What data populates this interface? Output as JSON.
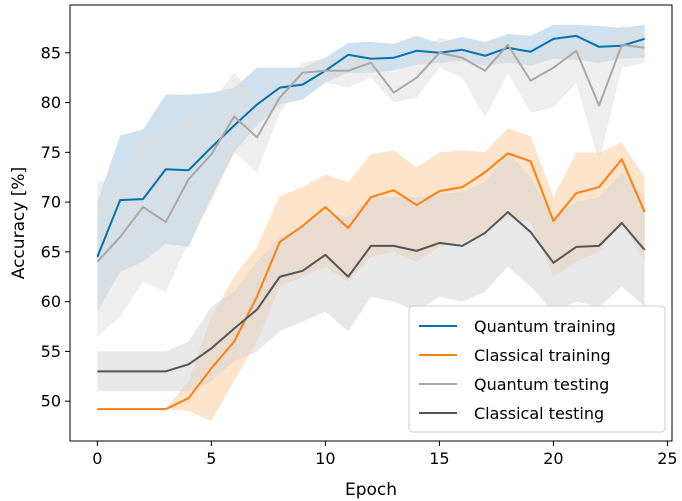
{
  "chart_data": {
    "type": "line",
    "xlabel": "Epoch",
    "ylabel": "Accuracy [%]",
    "xlim": [
      -1.2,
      25.2
    ],
    "ylim": [
      46.0,
      89.8
    ],
    "xticks": [
      0,
      5,
      10,
      15,
      20,
      25
    ],
    "yticks": [
      50,
      55,
      60,
      65,
      70,
      75,
      80,
      85
    ],
    "grid": false,
    "legend_position": "lower right",
    "x": [
      0,
      1,
      2,
      3,
      4,
      5,
      6,
      7,
      8,
      9,
      10,
      11,
      12,
      13,
      14,
      15,
      16,
      17,
      18,
      19,
      20,
      21,
      22,
      23,
      24
    ],
    "series": [
      {
        "name": "Quantum training",
        "color": "#0072b2",
        "band_color": "#9fc3e0",
        "values": [
          64.5,
          70.2,
          70.3,
          73.3,
          73.2,
          75.5,
          77.7,
          79.8,
          81.5,
          81.8,
          83.2,
          84.8,
          84.4,
          84.5,
          85.2,
          85.0,
          85.3,
          84.7,
          85.5,
          85.1,
          86.4,
          86.7,
          85.6,
          85.7,
          86.4
        ],
        "lower": [
          59.0,
          63.0,
          64.0,
          65.8,
          65.5,
          70.5,
          75.0,
          77.7,
          79.8,
          80.3,
          82.0,
          83.0,
          83.0,
          83.2,
          83.8,
          84.0,
          84.2,
          83.7,
          84.0,
          83.7,
          84.4,
          84.3,
          84.0,
          84.4,
          84.5
        ],
        "upper": [
          70.0,
          76.7,
          77.3,
          80.8,
          80.8,
          81.0,
          81.5,
          83.5,
          83.5,
          83.5,
          84.5,
          86.0,
          86.1,
          85.9,
          86.7,
          86.0,
          86.6,
          86.1,
          86.9,
          86.7,
          87.8,
          87.8,
          87.7,
          87.5,
          87.8
        ]
      },
      {
        "name": "Classical training",
        "color": "#ff7f0e",
        "band_color": "#ffc99a",
        "values": [
          49.2,
          49.2,
          49.2,
          49.2,
          50.3,
          53.3,
          56.0,
          60.5,
          66.0,
          67.6,
          69.5,
          67.4,
          70.5,
          71.2,
          69.7,
          71.1,
          71.5,
          73.0,
          74.9,
          74.1,
          68.1,
          70.9,
          71.5,
          74.3,
          69.0
        ],
        "lower": [
          49.2,
          49.2,
          49.2,
          49.2,
          49.0,
          48.0,
          52.0,
          56.0,
          61.5,
          62.5,
          63.5,
          62.0,
          64.5,
          65.0,
          64.0,
          65.5,
          66.0,
          67.0,
          68.5,
          68.0,
          62.5,
          64.0,
          65.0,
          68.0,
          64.0
        ],
        "upper": [
          49.2,
          49.2,
          49.2,
          49.2,
          52.0,
          58.5,
          62.5,
          65.5,
          70.6,
          71.5,
          72.8,
          72.0,
          74.8,
          75.2,
          73.5,
          75.0,
          75.2,
          75.0,
          77.4,
          76.6,
          70.5,
          75.0,
          75.0,
          76.0,
          72.5
        ]
      },
      {
        "name": "Quantum testing",
        "color": "#a8a8a8",
        "band_color": "#dedede",
        "values": [
          64.0,
          66.5,
          69.5,
          68.0,
          72.3,
          74.8,
          78.6,
          76.5,
          80.5,
          83.0,
          83.2,
          83.2,
          84.0,
          81.0,
          82.5,
          85.0,
          84.5,
          83.2,
          85.8,
          82.2,
          83.5,
          85.2,
          79.7,
          85.8,
          85.5
        ],
        "lower": [
          56.5,
          58.5,
          62.0,
          61.0,
          66.0,
          70.0,
          75.0,
          73.0,
          79.0,
          82.0,
          82.0,
          81.5,
          82.5,
          80.0,
          80.5,
          83.5,
          82.5,
          78.5,
          83.0,
          79.0,
          79.5,
          82.0,
          74.0,
          83.5,
          84.0
        ],
        "upper": [
          72.0,
          72.5,
          76.5,
          77.0,
          78.5,
          80.0,
          83.0,
          80.5,
          82.0,
          84.0,
          84.5,
          84.5,
          85.5,
          83.0,
          84.5,
          86.5,
          86.0,
          86.0,
          86.5,
          84.5,
          86.5,
          87.5,
          85.0,
          87.8,
          86.8
        ]
      },
      {
        "name": "Classical testing",
        "color": "#555555",
        "band_color": "#d2d2d2",
        "values": [
          53.0,
          53.0,
          53.0,
          53.0,
          53.7,
          55.3,
          57.3,
          59.2,
          62.5,
          63.1,
          64.7,
          62.5,
          65.6,
          65.6,
          65.1,
          65.9,
          65.6,
          66.9,
          69.0,
          67.0,
          63.9,
          65.5,
          65.6,
          67.9,
          65.2
        ],
        "lower": [
          51.0,
          51.0,
          51.0,
          51.0,
          51.0,
          52.0,
          54.0,
          55.0,
          57.0,
          58.0,
          59.0,
          57.0,
          60.5,
          60.0,
          59.0,
          60.5,
          60.0,
          61.0,
          63.5,
          61.5,
          59.0,
          60.0,
          59.5,
          61.5,
          59.5
        ],
        "upper": [
          55.0,
          55.0,
          55.0,
          55.0,
          56.0,
          59.5,
          61.0,
          64.0,
          66.5,
          67.5,
          69.0,
          68.5,
          70.5,
          70.5,
          70.5,
          70.8,
          71.0,
          72.0,
          75.0,
          72.5,
          68.5,
          70.0,
          70.5,
          73.0,
          70.5
        ]
      }
    ]
  }
}
